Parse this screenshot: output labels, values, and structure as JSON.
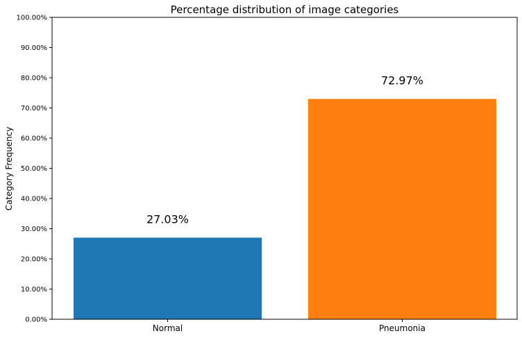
{
  "chart_data": {
    "type": "bar",
    "title": "Percentage distribution of image categories",
    "xlabel": "",
    "ylabel": "Category Frequency",
    "categories": [
      "Normal",
      "Pneumonia"
    ],
    "values": [
      27.03,
      72.97
    ],
    "data_labels": [
      "27.03%",
      "72.97%"
    ],
    "bar_colors": [
      "#1f77b4",
      "#ff7f0e"
    ],
    "ylim": [
      0,
      100
    ],
    "y_ticks": [
      0,
      10,
      20,
      30,
      40,
      50,
      60,
      70,
      80,
      90,
      100
    ],
    "y_tick_labels": [
      "0.00%",
      "10.00%",
      "20.00%",
      "30.00%",
      "40.00%",
      "50.00%",
      "60.00%",
      "70.00%",
      "80.00%",
      "90.00%",
      "100.00%"
    ],
    "grid": false,
    "legend": "none"
  }
}
